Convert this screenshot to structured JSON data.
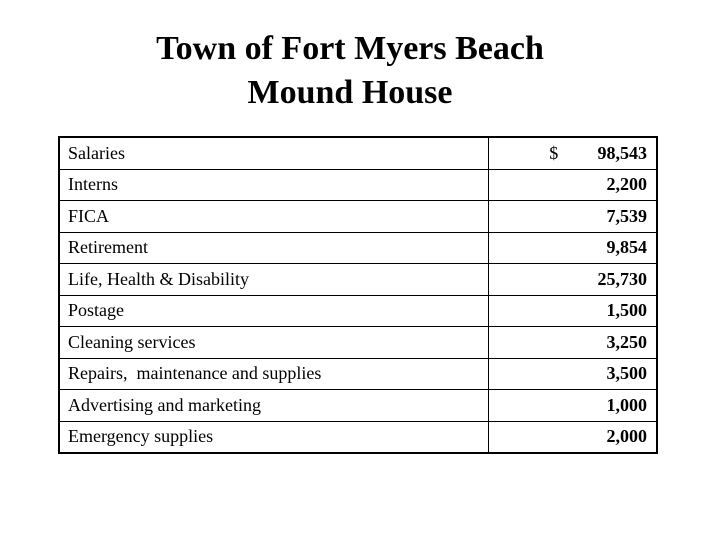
{
  "title": {
    "line1": "Town of Fort Myers Beach",
    "line2": "Mound House"
  },
  "rows": [
    {
      "label": "Salaries",
      "currency": "$",
      "amount": "98,543"
    },
    {
      "label": "Interns",
      "currency": "",
      "amount": "2,200"
    },
    {
      "label": "FICA",
      "currency": "",
      "amount": "7,539"
    },
    {
      "label": "Retirement",
      "currency": "",
      "amount": "9,854"
    },
    {
      "label": "Life, Health & Disability",
      "currency": "",
      "amount": "25,730"
    },
    {
      "label": "Postage",
      "currency": "",
      "amount": "1,500"
    },
    {
      "label": "Cleaning services",
      "currency": "",
      "amount": "3,250"
    },
    {
      "label": "Repairs,  maintenance and supplies",
      "currency": "",
      "amount": "3,500"
    },
    {
      "label": "Advertising and marketing",
      "currency": "",
      "amount": "1,000"
    },
    {
      "label": "Emergency supplies",
      "currency": "",
      "amount": "2,000"
    }
  ]
}
